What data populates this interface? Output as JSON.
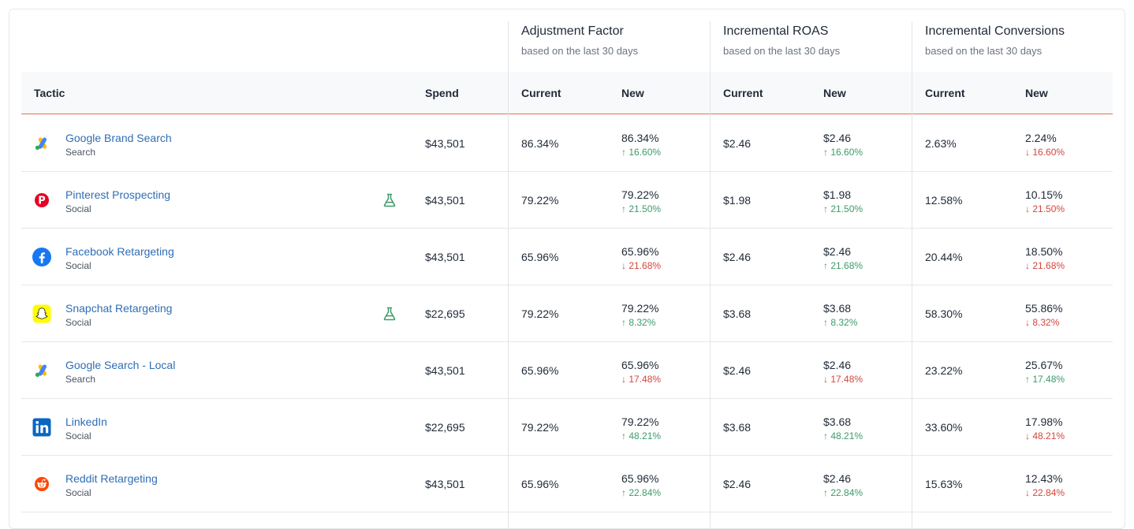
{
  "groups": [
    {
      "title": "Adjustment Factor",
      "subtitle": "based on the last 30 days"
    },
    {
      "title": "Incremental ROAS",
      "subtitle": "based on the last 30 days"
    },
    {
      "title": "Incremental Conversions",
      "subtitle": "based on the last 30 days"
    }
  ],
  "columns": {
    "tactic": "Tactic",
    "spend": "Spend",
    "current": "Current",
    "new": "New"
  },
  "colors": {
    "link": "#2f6eb5",
    "up": "#3d9a6a",
    "down": "#d2463c",
    "header_rule": "#e3714f"
  },
  "rows": [
    {
      "name": "Google Brand Search",
      "channel": "Search",
      "icon": "google-ads-icon",
      "experiment": false,
      "spend": "$43,501",
      "af_current": "86.34%",
      "af_new": "86.34%",
      "af_delta": "↑ 16.60%",
      "af_dir": "up",
      "roas_current": "$2.46",
      "roas_new": "$2.46",
      "roas_delta": "↑ 16.60%",
      "roas_dir": "up",
      "conv_current": "2.63%",
      "conv_new": "2.24%",
      "conv_delta": "↓ 16.60%",
      "conv_dir": "down"
    },
    {
      "name": "Pinterest Prospecting",
      "channel": "Social",
      "icon": "pinterest-icon",
      "experiment": true,
      "spend": "$43,501",
      "af_current": "79.22%",
      "af_new": "79.22%",
      "af_delta": "↑ 21.50%",
      "af_dir": "up",
      "roas_current": "$1.98",
      "roas_new": "$1.98",
      "roas_delta": "↑ 21.50%",
      "roas_dir": "up",
      "conv_current": "12.58%",
      "conv_new": "10.15%",
      "conv_delta": "↓ 21.50%",
      "conv_dir": "down"
    },
    {
      "name": "Facebook Retargeting",
      "channel": "Social",
      "icon": "facebook-icon",
      "experiment": false,
      "spend": "$43,501",
      "af_current": "65.96%",
      "af_new": "65.96%",
      "af_delta": "↓ 21.68%",
      "af_dir": "down",
      "roas_current": "$2.46",
      "roas_new": "$2.46",
      "roas_delta": "↑ 21.68%",
      "roas_dir": "up",
      "conv_current": "20.44%",
      "conv_new": "18.50%",
      "conv_delta": "↓ 21.68%",
      "conv_dir": "down"
    },
    {
      "name": "Snapchat Retargeting",
      "channel": "Social",
      "icon": "snapchat-icon",
      "experiment": true,
      "spend": "$22,695",
      "af_current": "79.22%",
      "af_new": "79.22%",
      "af_delta": "↑ 8.32%",
      "af_dir": "up",
      "roas_current": "$3.68",
      "roas_new": "$3.68",
      "roas_delta": "↑ 8.32%",
      "roas_dir": "up",
      "conv_current": "58.30%",
      "conv_new": "55.86%",
      "conv_delta": "↓ 8.32%",
      "conv_dir": "down"
    },
    {
      "name": "Google Search - Local",
      "channel": "Search",
      "icon": "google-ads-icon",
      "experiment": false,
      "spend": "$43,501",
      "af_current": "65.96%",
      "af_new": "65.96%",
      "af_delta": "↓ 17.48%",
      "af_dir": "down",
      "roas_current": "$2.46",
      "roas_new": "$2.46",
      "roas_delta": "↓ 17.48%",
      "roas_dir": "down",
      "conv_current": "23.22%",
      "conv_new": "25.67%",
      "conv_delta": "↑ 17.48%",
      "conv_dir": "up"
    },
    {
      "name": "LinkedIn",
      "channel": "Social",
      "icon": "linkedin-icon",
      "experiment": false,
      "spend": "$22,695",
      "af_current": "79.22%",
      "af_new": "79.22%",
      "af_delta": "↑ 48.21%",
      "af_dir": "up",
      "roas_current": "$3.68",
      "roas_new": "$3.68",
      "roas_delta": "↑ 48.21%",
      "roas_dir": "up",
      "conv_current": "33.60%",
      "conv_new": "17.98%",
      "conv_delta": "↓ 48.21%",
      "conv_dir": "down"
    },
    {
      "name": "Reddit Retargeting",
      "channel": "Social",
      "icon": "reddit-icon",
      "experiment": false,
      "spend": "$43,501",
      "af_current": "65.96%",
      "af_new": "65.96%",
      "af_delta": "↑ 22.84%",
      "af_dir": "up",
      "roas_current": "$2.46",
      "roas_new": "$2.46",
      "roas_delta": "↑ 22.84%",
      "roas_dir": "up",
      "conv_current": "15.63%",
      "conv_new": "12.43%",
      "conv_delta": "↓ 22.84%",
      "conv_dir": "down"
    }
  ]
}
